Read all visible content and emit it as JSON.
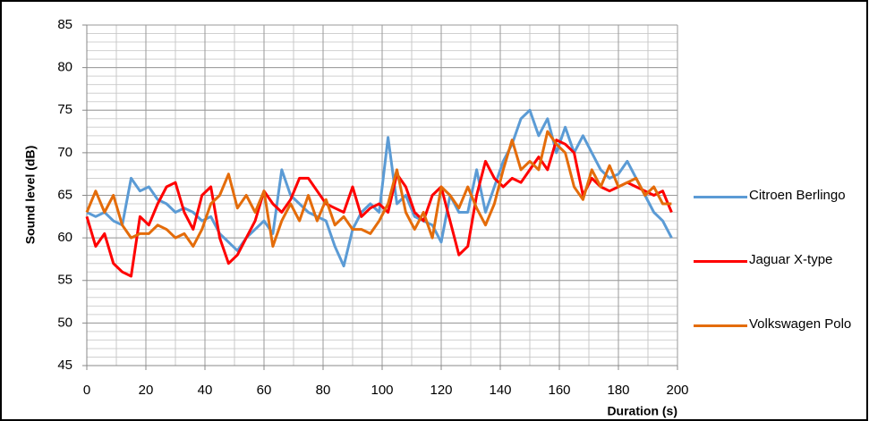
{
  "chart_data": {
    "type": "line",
    "xlabel": "Duration (s)",
    "ylabel": "Sound level (dB)",
    "x": [
      0,
      3,
      6,
      9,
      12,
      15,
      18,
      21,
      24,
      27,
      30,
      33,
      36,
      39,
      42,
      45,
      48,
      51,
      54,
      57,
      60,
      63,
      66,
      69,
      72,
      75,
      78,
      81,
      84,
      87,
      90,
      93,
      96,
      99,
      102,
      105,
      108,
      111,
      114,
      117,
      120,
      123,
      126,
      129,
      132,
      135,
      138,
      141,
      144,
      147,
      150,
      153,
      156,
      159,
      162,
      165,
      168,
      171,
      174,
      177,
      180,
      183,
      186,
      189,
      192,
      195,
      198
    ],
    "series": [
      {
        "name": "Citroen Berlingo",
        "color": "#5b9bd5",
        "values": [
          63,
          62.5,
          63,
          62,
          61.5,
          67,
          65.5,
          66,
          64.5,
          64,
          63,
          63.5,
          63,
          62,
          62.5,
          60.5,
          59.5,
          58.5,
          60,
          61,
          62,
          60.5,
          68,
          65,
          64,
          63,
          62.5,
          62,
          59,
          56.7,
          61,
          63,
          64,
          63,
          71.8,
          64,
          65,
          62.5,
          62,
          61.5,
          59.5,
          65,
          63,
          63,
          68,
          63,
          66,
          69,
          71,
          74,
          75,
          72,
          74,
          70,
          73,
          70,
          72,
          70,
          68,
          67,
          67.5,
          69,
          67,
          65,
          63,
          62,
          60
        ]
      },
      {
        "name": "Jaguar X-type",
        "color": "#ff0000",
        "values": [
          62.5,
          59,
          60.5,
          57,
          56,
          55.5,
          62.5,
          61.5,
          64,
          66,
          66.5,
          63,
          61,
          65,
          66,
          60,
          57,
          58,
          60,
          62,
          65.5,
          64,
          63,
          64.5,
          67,
          67,
          65.5,
          64,
          63.5,
          63,
          66,
          62.5,
          63.5,
          64,
          63,
          67.5,
          66,
          63,
          62,
          65,
          66,
          62,
          58,
          59,
          65,
          69,
          67,
          66,
          67,
          66.5,
          68,
          69.5,
          68,
          71.5,
          71,
          70,
          65,
          67,
          66,
          65.5,
          66,
          66.5,
          66,
          65.5,
          65,
          65.5,
          63
        ]
      },
      {
        "name": "Volkswagen Polo",
        "color": "#e46c0a",
        "values": [
          63,
          65.5,
          63,
          65,
          61.5,
          60,
          60.5,
          60.5,
          61.5,
          61,
          60,
          60.5,
          59,
          61,
          64,
          65,
          67.5,
          63.5,
          65,
          63,
          65.5,
          59,
          62,
          64,
          62,
          65,
          62,
          64.5,
          61.5,
          62.5,
          61,
          61,
          60.5,
          62,
          64,
          68,
          63,
          61,
          63,
          60,
          66,
          65,
          63.5,
          66,
          63.5,
          61.5,
          64,
          68,
          71.5,
          68,
          69,
          68,
          72.5,
          71,
          70,
          66,
          64.5,
          68,
          66,
          68.5,
          66,
          66.5,
          67,
          65,
          66,
          64,
          64
        ]
      }
    ],
    "xlim": [
      0,
      200
    ],
    "xticks": [
      0,
      20,
      40,
      60,
      80,
      100,
      120,
      140,
      160,
      180,
      200
    ],
    "ylim": [
      45,
      85
    ],
    "yticks": [
      45,
      50,
      55,
      60,
      65,
      70,
      75,
      80,
      85
    ],
    "grid": {
      "x_step": 10,
      "y_step": 1
    },
    "legend": "right"
  }
}
